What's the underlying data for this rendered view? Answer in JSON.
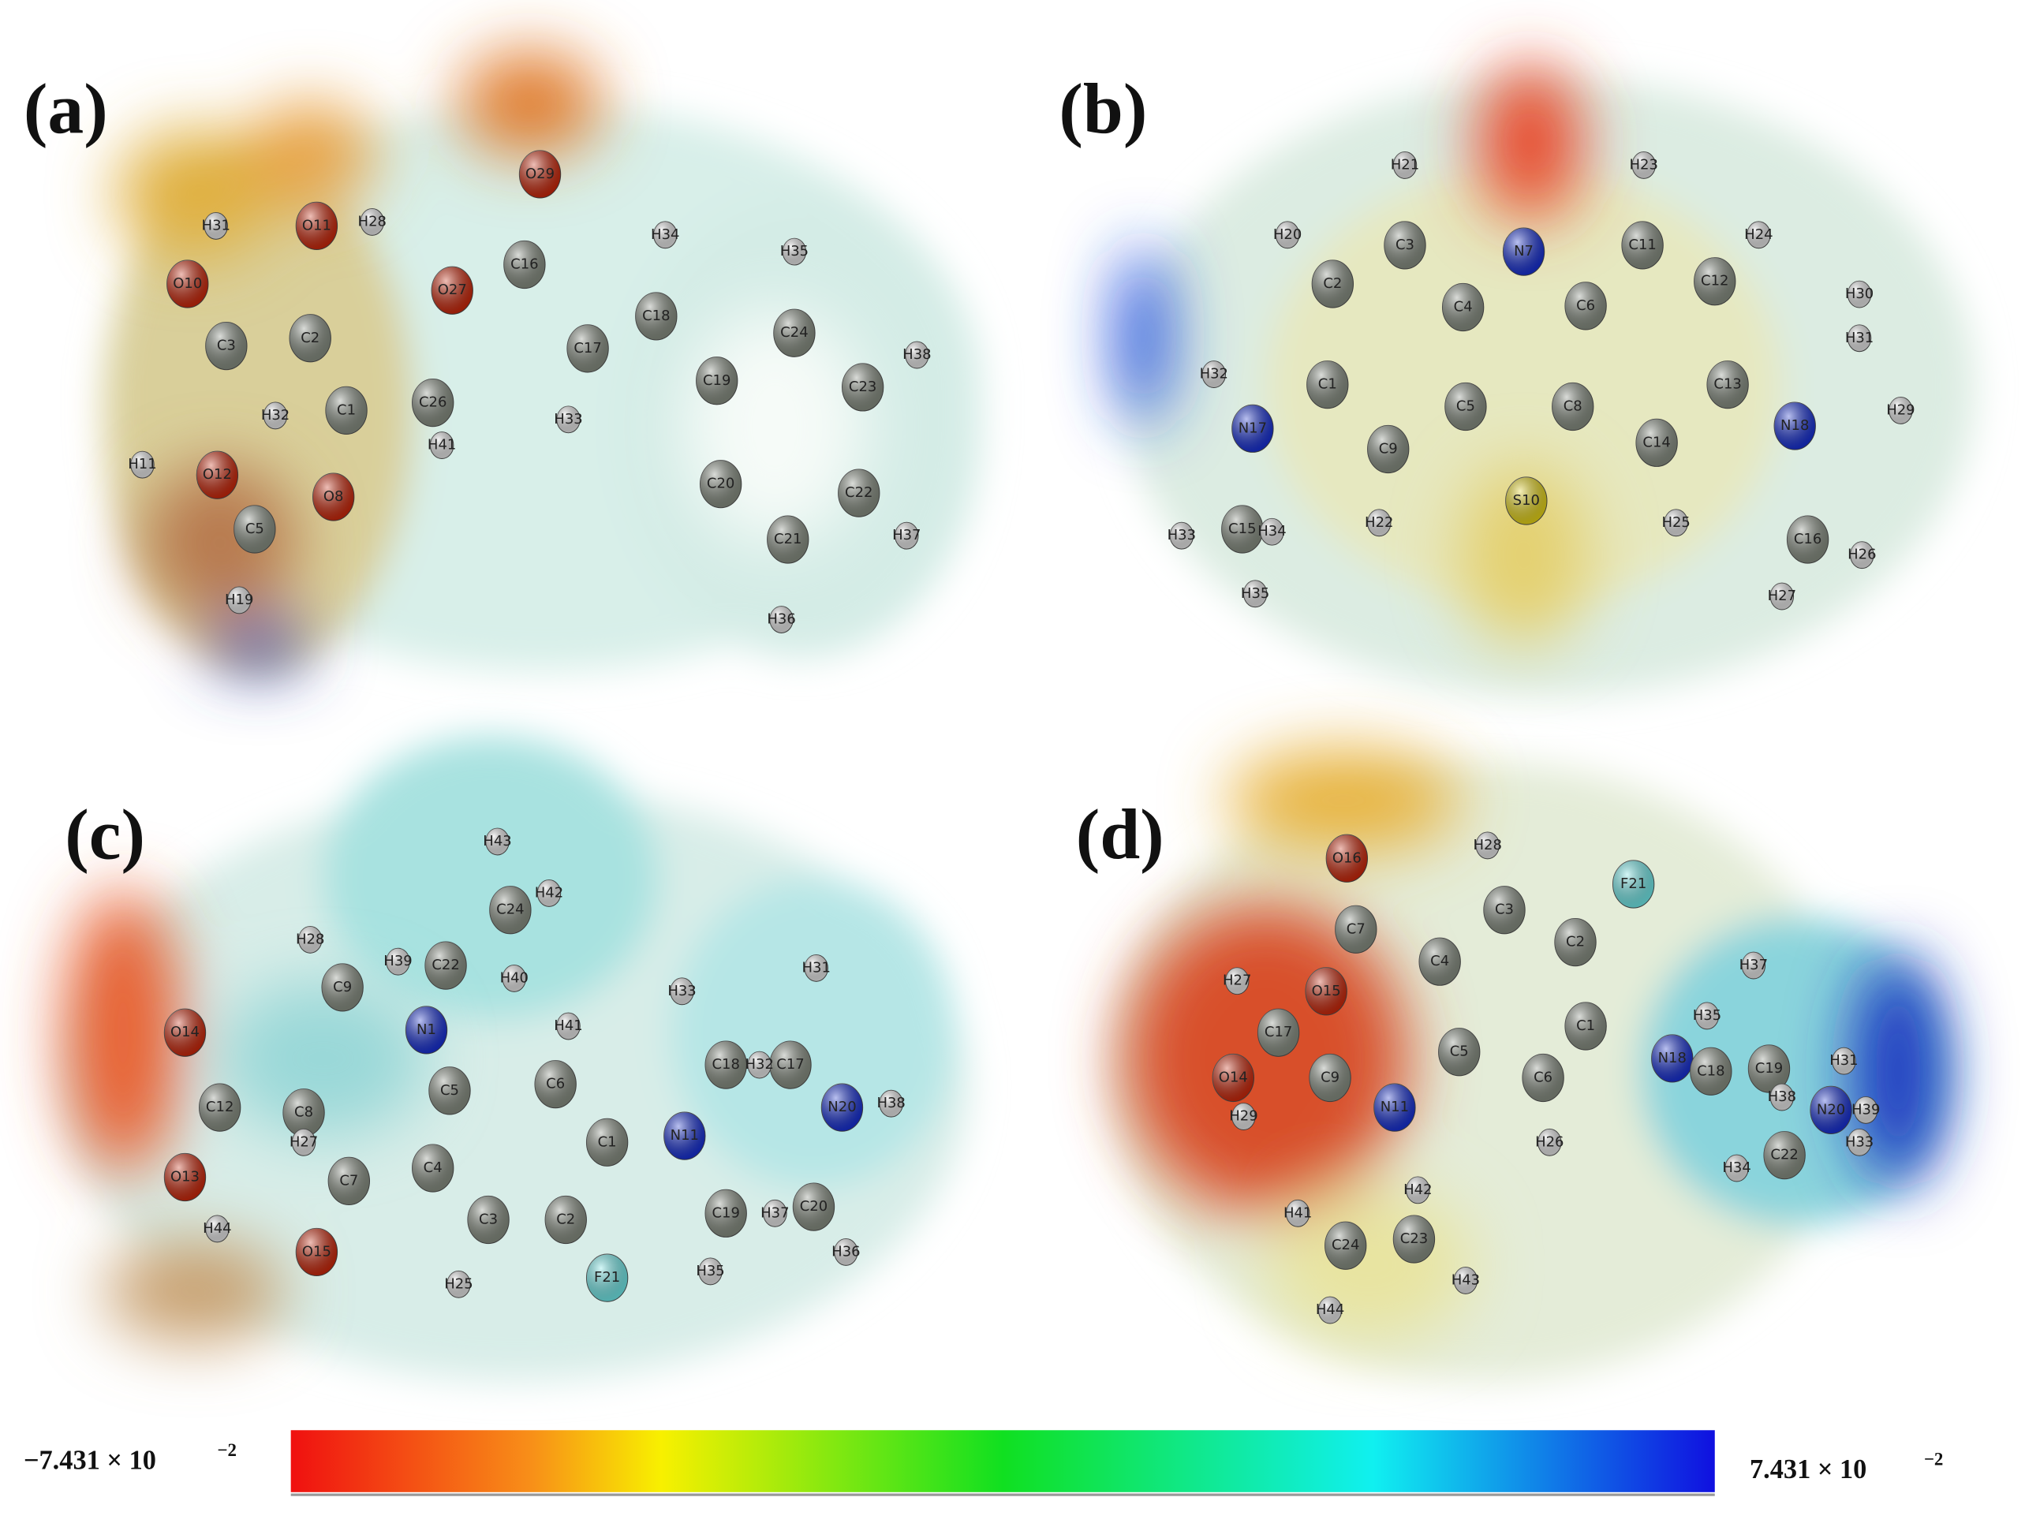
{
  "panels": [
    {
      "label": "(a)",
      "atoms": [
        "O29",
        "C16",
        "O27",
        "C17",
        "C18",
        "H34",
        "H33",
        "C19",
        "C24",
        "H35",
        "C23",
        "H38",
        "C22",
        "H37",
        "C21",
        "H36",
        "C20",
        "H31",
        "O11",
        "H28",
        "O10",
        "C3",
        "C2",
        "C1",
        "C26",
        "H41",
        "H32",
        "O8",
        "C5",
        "O12",
        "H11",
        "H19"
      ]
    },
    {
      "label": "(b)",
      "atoms": [
        "H21",
        "H23",
        "C3",
        "C11",
        "N7",
        "H20",
        "H24",
        "C2",
        "C12",
        "C4",
        "C6",
        "C1",
        "C13",
        "C5",
        "C8",
        "C9",
        "C14",
        "S10",
        "H22",
        "H25",
        "N17",
        "N18",
        "H32",
        "C15",
        "H33",
        "H35",
        "H34",
        "H30",
        "H31",
        "H29",
        "C16",
        "H26",
        "H27"
      ]
    },
    {
      "label": "(c)",
      "atoms": [
        "O14",
        "C12",
        "O13",
        "H44",
        "C8",
        "H27",
        "C7",
        "O15",
        "C4",
        "C3",
        "H25",
        "C2",
        "F21",
        "C1",
        "C5",
        "C6",
        "N1",
        "C9",
        "H28",
        "C22",
        "H39",
        "C24",
        "H43",
        "H42",
        "H40",
        "H41",
        "N11",
        "C18",
        "H33",
        "C17",
        "H32",
        "H31",
        "N20",
        "H38",
        "C19",
        "H37",
        "C20",
        "H35",
        "H36"
      ]
    },
    {
      "label": "(d)",
      "atoms": [
        "O16",
        "H28",
        "F21",
        "C3",
        "C2",
        "C7",
        "C4",
        "H27",
        "O15",
        "C1",
        "C5",
        "C6",
        "C17",
        "O14",
        "C9",
        "N11",
        "H29",
        "H26",
        "N18",
        "C18",
        "C19",
        "H35",
        "H37",
        "N20",
        "H31",
        "H39",
        "H33",
        "H34",
        "C22",
        "H38",
        "C24",
        "H41",
        "C23",
        "H42",
        "H43",
        "H44"
      ]
    }
  ],
  "colorbar": {
    "min": {
      "base": "−7.431 × 10",
      "exponent": "−2"
    },
    "max": {
      "base": "7.431 × 10",
      "exponent": "−2"
    }
  }
}
